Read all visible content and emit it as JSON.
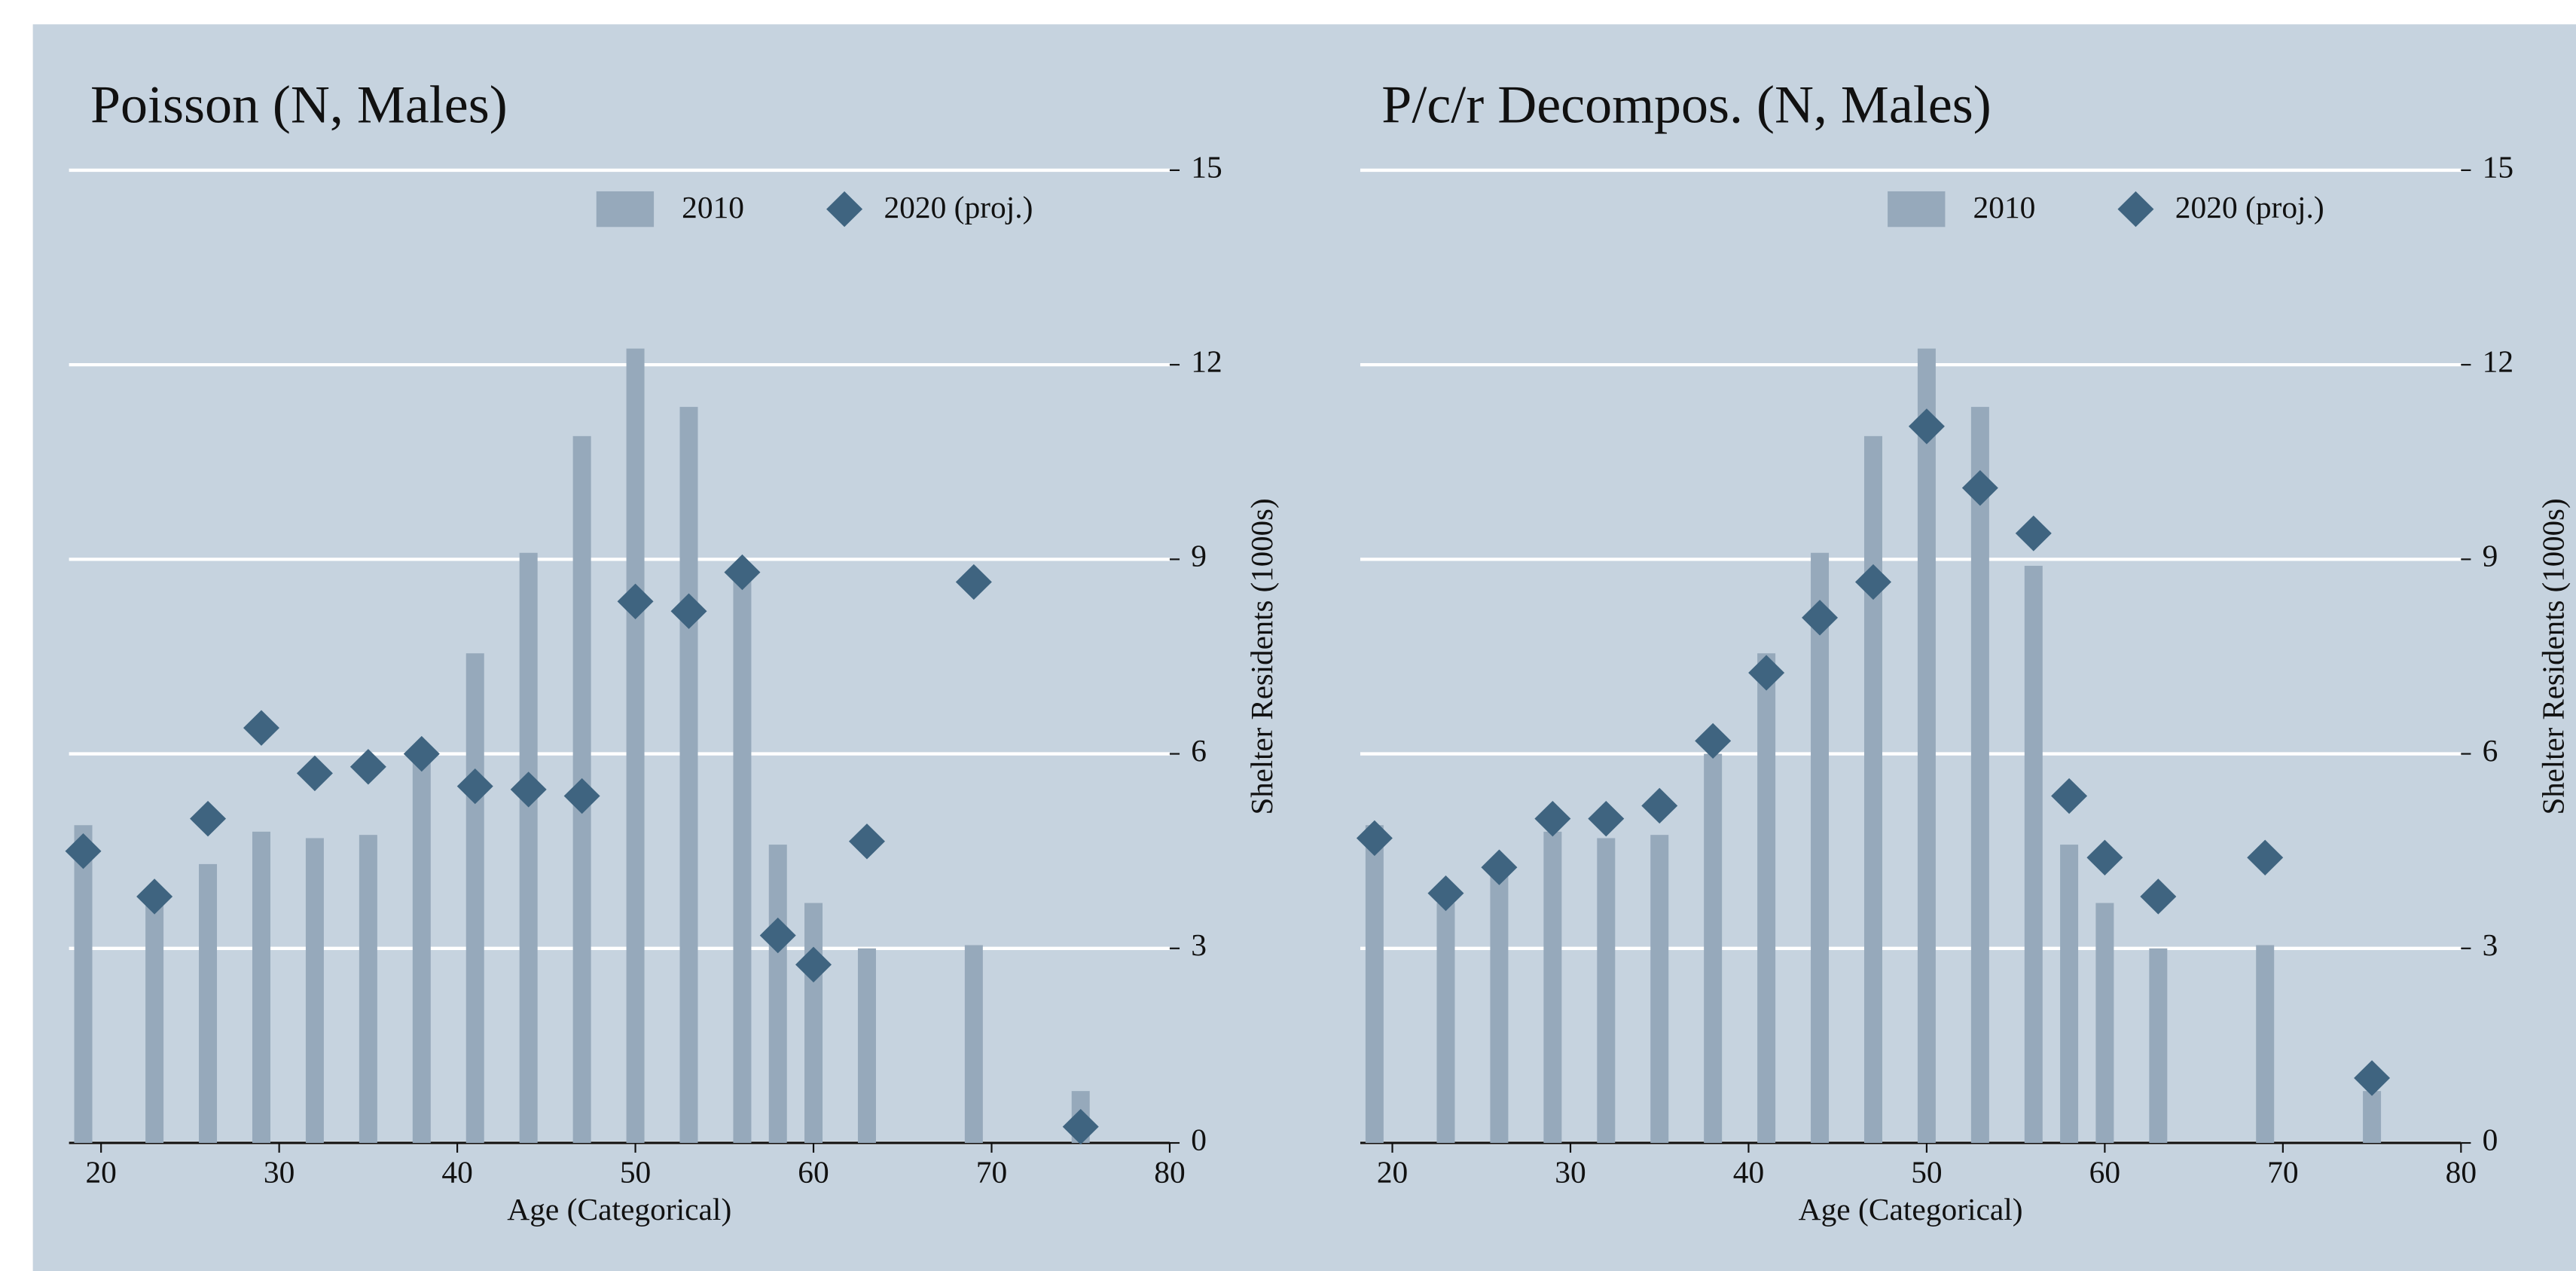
{
  "chart_data": [
    {
      "type": "bar",
      "title": "Poisson (N, Males)",
      "x_label": "Age (Categorical)",
      "y_label": "Shelter Residents (1000s)",
      "x": [
        19,
        23,
        26,
        29,
        32,
        35,
        38,
        41,
        44,
        47,
        50,
        53,
        56,
        58,
        60,
        63,
        69,
        75
      ],
      "series": [
        {
          "name": "2010",
          "type": "bar",
          "color": "#96a9bb",
          "values": [
            4.9,
            3.7,
            4.3,
            4.8,
            4.7,
            4.75,
            6.0,
            7.55,
            9.1,
            10.9,
            12.25,
            11.35,
            8.9,
            4.6,
            3.7,
            3.0,
            3.05,
            0.8
          ]
        },
        {
          "name": "2020 (proj.)",
          "type": "scatter",
          "color": "#3f6480",
          "values": [
            4.5,
            3.8,
            5.0,
            6.4,
            5.7,
            5.8,
            6.0,
            5.5,
            5.45,
            5.35,
            8.35,
            8.2,
            8.8,
            3.2,
            2.75,
            4.65,
            8.65,
            0.25
          ]
        }
      ],
      "xlim": [
        18.2,
        80
      ],
      "xticks": [
        20,
        30,
        40,
        50,
        60,
        70,
        80
      ],
      "ylim": [
        0,
        15
      ],
      "yticks": [
        0,
        3,
        6,
        9,
        12,
        15
      ],
      "grid": true,
      "legend": "top"
    },
    {
      "type": "bar",
      "title": "P/c/r Decompos. (N, Males)",
      "x_label": "Age (Categorical)",
      "y_label": "Shelter Residents (1000s)",
      "x": [
        19,
        23,
        26,
        29,
        32,
        35,
        38,
        41,
        44,
        47,
        50,
        53,
        56,
        58,
        60,
        63,
        69,
        75
      ],
      "series": [
        {
          "name": "2010",
          "type": "bar",
          "color": "#96a9bb",
          "values": [
            4.9,
            3.7,
            4.3,
            4.8,
            4.7,
            4.75,
            6.0,
            7.55,
            9.1,
            10.9,
            12.25,
            11.35,
            8.9,
            4.6,
            3.7,
            3.0,
            3.05,
            0.8
          ]
        },
        {
          "name": "2020 (proj.)",
          "type": "scatter",
          "color": "#3f6480",
          "values": [
            4.7,
            3.85,
            4.25,
            5.0,
            5.0,
            5.2,
            6.2,
            7.25,
            8.1,
            8.65,
            11.05,
            10.1,
            9.4,
            5.35,
            4.4,
            3.8,
            4.4,
            1.0
          ]
        }
      ],
      "xlim": [
        18.2,
        80
      ],
      "xticks": [
        20,
        30,
        40,
        50,
        60,
        70,
        80
      ],
      "ylim": [
        0,
        15
      ],
      "yticks": [
        0,
        3,
        6,
        9,
        12,
        15
      ],
      "grid": true,
      "legend": "top"
    }
  ]
}
